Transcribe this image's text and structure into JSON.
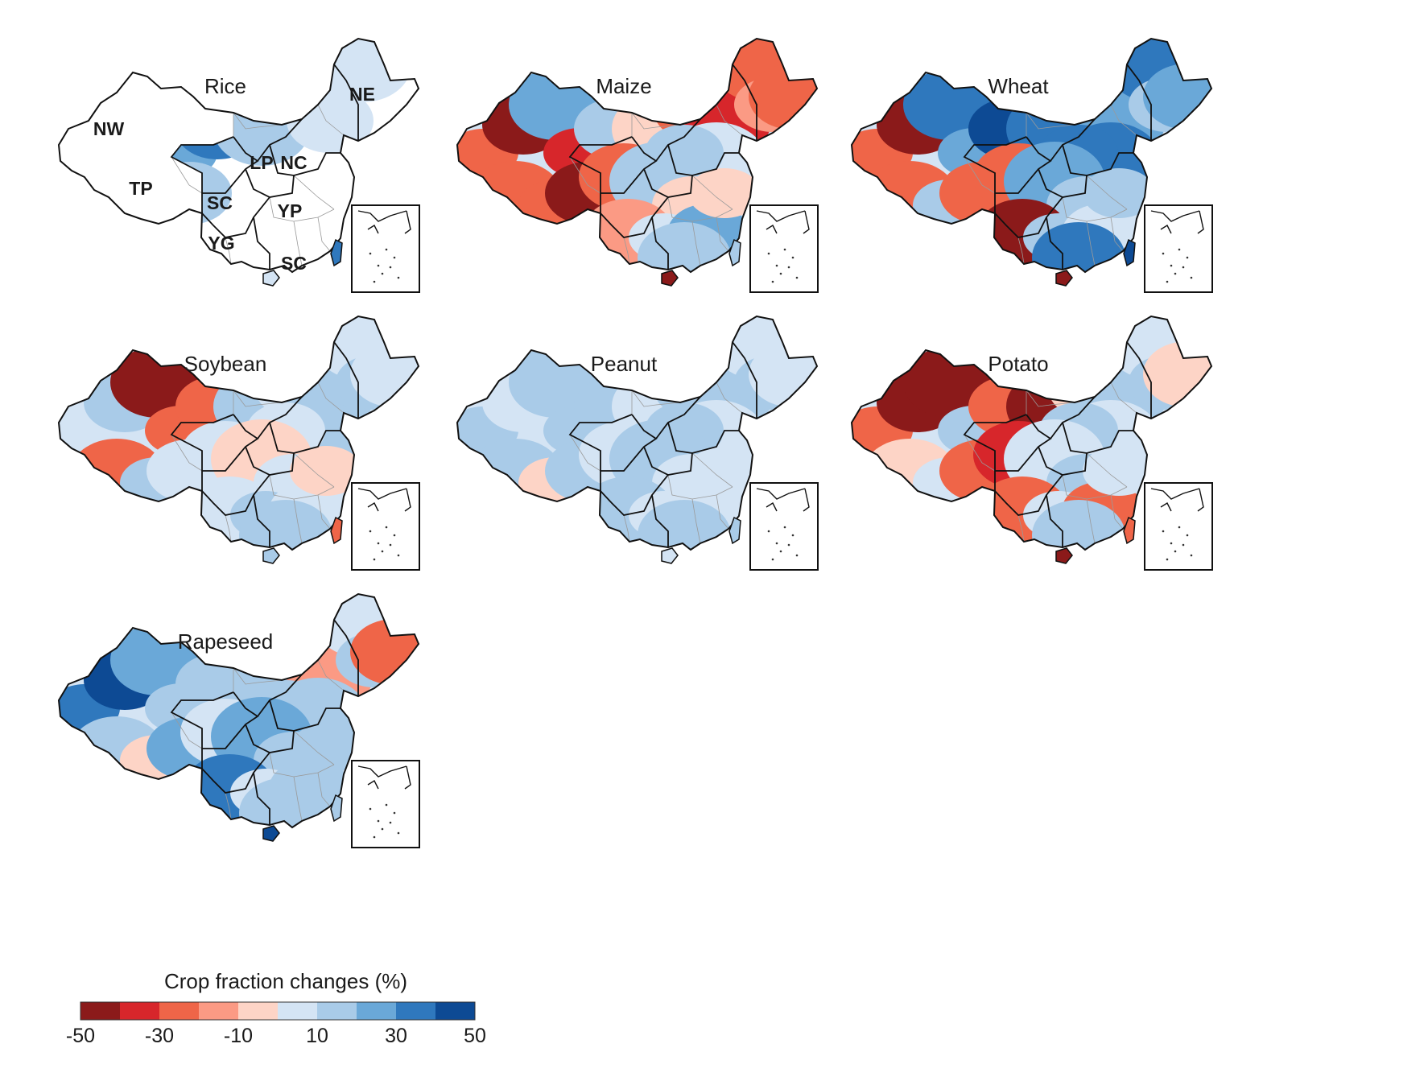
{
  "panels": [
    {
      "crop": "Rice",
      "labels": [
        "NW",
        "TP",
        "NE",
        "LP",
        "NC",
        "SC",
        "YP",
        "YG",
        "SC"
      ],
      "fractions": [
        0.0,
        0.0,
        0.3,
        0.28,
        0.35,
        0.3,
        0.25,
        0.2,
        0.15,
        0.2,
        0.1,
        0.05,
        0.0,
        0.0,
        0.0,
        0.0,
        0.0,
        0.0,
        0.0,
        0.0,
        0.0,
        0.0,
        0.0,
        0.0
      ]
    },
    {
      "crop": "Maize",
      "labels": [],
      "fractions": [
        -0.3,
        -0.4,
        0.25,
        -0.35,
        0.2,
        -0.3,
        -0.25,
        -0.4,
        -0.1,
        -0.3,
        -0.35,
        -0.2,
        -0.15,
        -0.2,
        0.1,
        0.2,
        -0.25,
        0.2,
        -0.1,
        -0.15,
        0.1,
        0.25,
        0.15,
        -0.05
      ]
    },
    {
      "crop": "Wheat",
      "labels": [],
      "fractions": [
        -0.3,
        -0.4,
        0.3,
        0.25,
        0.4,
        -0.25,
        0.2,
        -0.2,
        0.35,
        0.3,
        0.25,
        0.3,
        0.2,
        0.25,
        0.35,
        0.3,
        -0.3,
        0.25,
        0.15,
        -0.45,
        0.2,
        0.1,
        0.3,
        0.2
      ]
    },
    {
      "crop": "Soybean",
      "labels": [],
      "fractions": [
        0.1,
        0.2,
        -0.45,
        -0.3,
        -0.2,
        -0.25,
        0.15,
        0.1,
        0.2,
        0.1,
        0.15,
        0.1,
        0.15,
        0.1,
        0.2,
        0.05,
        0.1,
        -0.05,
        0.1,
        0.1,
        0.15,
        0.1,
        0.2,
        -0.1
      ]
    },
    {
      "crop": "Peanut",
      "labels": [],
      "fractions": [
        0.15,
        0.1,
        0.2,
        0.15,
        0.2,
        0.15,
        -0.05,
        0.15,
        0.1,
        0.15,
        0.2,
        0.1,
        0.15,
        0.1,
        0.05,
        0.15,
        0.1,
        0.2,
        0.1,
        0.15,
        0.1,
        0.05,
        0.15,
        0.1
      ]
    },
    {
      "crop": "Potato",
      "labels": [],
      "fractions": [
        -0.2,
        -0.4,
        -0.45,
        0.15,
        -0.3,
        -0.1,
        0.1,
        -0.2,
        -0.45,
        -0.1,
        0.15,
        0.1,
        0.15,
        -0.05,
        0.1,
        0.15,
        -0.35,
        0.1,
        0.15,
        -0.2,
        0.1,
        -0.3,
        0.15,
        0.1
      ]
    },
    {
      "crop": "Rapeseed",
      "labels": [],
      "fractions": [
        0.3,
        0.45,
        0.25,
        0.2,
        0.15,
        0.2,
        -0.1,
        0.25,
        0.2,
        0.15,
        -0.15,
        0.1,
        0.2,
        -0.2,
        0.15,
        0.2,
        0.1,
        0.25,
        0.15,
        0.3,
        0.1,
        0.2,
        0.15,
        0.2
      ]
    }
  ],
  "legend": {
    "title": "Crop fraction changes (%)",
    "ticks": [
      "-50",
      "-30",
      "-10",
      "10",
      "30",
      "50"
    ],
    "colors": [
      "#8b1a1a",
      "#d7262b",
      "#ef6548",
      "#fb9a84",
      "#fdd4c6",
      "#d4e4f4",
      "#a9cbe8",
      "#6aa8d8",
      "#2f78bd",
      "#0d4a94"
    ]
  },
  "colors": {
    "outline": "#111111",
    "no_data": "#ffffff",
    "boundary_gray": "#9a9a9a"
  }
}
